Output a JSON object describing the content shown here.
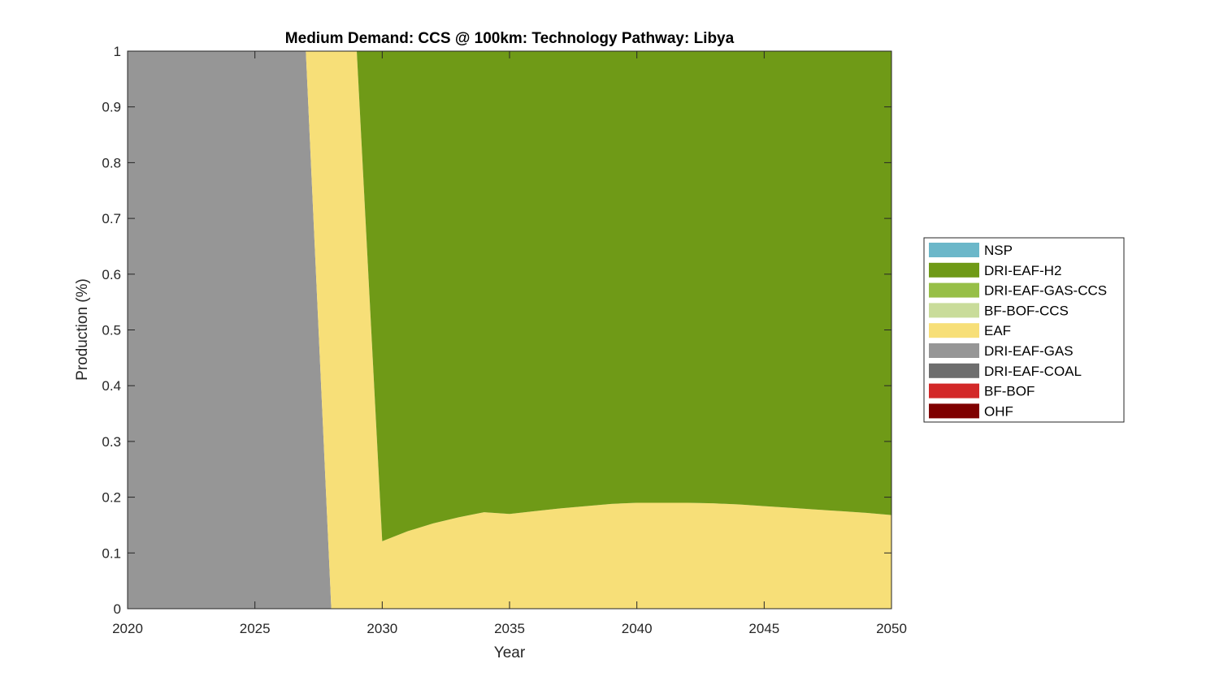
{
  "chart_data": {
    "type": "area",
    "title": "Medium Demand: CCS @ 100km: Technology Pathway: Libya",
    "xlabel": "Year",
    "ylabel": "Production (%)",
    "xlim": [
      2020,
      2050
    ],
    "ylim": [
      0,
      1
    ],
    "xticks": [
      2020,
      2025,
      2030,
      2035,
      2040,
      2045,
      2050
    ],
    "yticks": [
      0,
      0.1,
      0.2,
      0.3,
      0.4,
      0.5,
      0.6,
      0.7,
      0.8,
      0.9,
      1
    ],
    "grid": false,
    "legend_position": "right",
    "stack_order": [
      "OHF",
      "BF-BOF",
      "DRI-EAF-COAL",
      "DRI-EAF-GAS",
      "EAF",
      "BF-BOF-CCS",
      "DRI-EAF-GAS-CCS",
      "DRI-EAF-H2",
      "NSP"
    ],
    "legend_order": [
      "NSP",
      "DRI-EAF-H2",
      "DRI-EAF-GAS-CCS",
      "BF-BOF-CCS",
      "EAF",
      "DRI-EAF-GAS",
      "DRI-EAF-COAL",
      "BF-BOF",
      "OHF"
    ],
    "x": [
      2020,
      2021,
      2022,
      2023,
      2024,
      2025,
      2026,
      2027,
      2028,
      2029,
      2030,
      2031,
      2032,
      2033,
      2034,
      2035,
      2036,
      2037,
      2038,
      2039,
      2040,
      2041,
      2042,
      2043,
      2044,
      2045,
      2046,
      2047,
      2048,
      2049,
      2050
    ],
    "series": [
      {
        "name": "NSP",
        "color": "#6bb7c9",
        "values": [
          0,
          0,
          0,
          0,
          0,
          0,
          0,
          0,
          0,
          0,
          0,
          0,
          0,
          0,
          0,
          0,
          0,
          0,
          0,
          0,
          0,
          0,
          0,
          0,
          0,
          0,
          0,
          0,
          0,
          0,
          0
        ]
      },
      {
        "name": "DRI-EAF-H2",
        "color": "#6f9a17",
        "values": [
          0,
          0,
          0,
          0,
          0,
          0,
          0,
          0,
          0,
          0,
          0.879,
          0.861,
          0.847,
          0.836,
          0.827,
          0.83,
          0.825,
          0.82,
          0.816,
          0.812,
          0.81,
          0.81,
          0.81,
          0.811,
          0.813,
          0.816,
          0.819,
          0.822,
          0.825,
          0.828,
          0.832
        ]
      },
      {
        "name": "DRI-EAF-GAS-CCS",
        "color": "#97bf47",
        "values": [
          0,
          0,
          0,
          0,
          0,
          0,
          0,
          0,
          0,
          0,
          0,
          0,
          0,
          0,
          0,
          0,
          0,
          0,
          0,
          0,
          0,
          0,
          0,
          0,
          0,
          0,
          0,
          0,
          0,
          0,
          0
        ]
      },
      {
        "name": "BF-BOF-CCS",
        "color": "#c9dc9a",
        "values": [
          0,
          0,
          0,
          0,
          0,
          0,
          0,
          0,
          0,
          0,
          0,
          0,
          0,
          0,
          0,
          0,
          0,
          0,
          0,
          0,
          0,
          0,
          0,
          0,
          0,
          0,
          0,
          0,
          0,
          0,
          0
        ]
      },
      {
        "name": "EAF",
        "color": "#f7df78",
        "values": [
          0,
          0,
          0,
          0,
          0,
          0,
          0,
          0,
          1,
          1,
          0.121,
          0.139,
          0.153,
          0.164,
          0.173,
          0.17,
          0.175,
          0.18,
          0.184,
          0.188,
          0.19,
          0.19,
          0.19,
          0.189,
          0.187,
          0.184,
          0.181,
          0.178,
          0.175,
          0.172,
          0.168
        ]
      },
      {
        "name": "DRI-EAF-GAS",
        "color": "#969696",
        "values": [
          1,
          1,
          1,
          1,
          1,
          1,
          1,
          1,
          0,
          0,
          0,
          0,
          0,
          0,
          0,
          0,
          0,
          0,
          0,
          0,
          0,
          0,
          0,
          0,
          0,
          0,
          0,
          0,
          0,
          0,
          0
        ]
      },
      {
        "name": "DRI-EAF-COAL",
        "color": "#6e6e6e",
        "values": [
          0,
          0,
          0,
          0,
          0,
          0,
          0,
          0,
          0,
          0,
          0,
          0,
          0,
          0,
          0,
          0,
          0,
          0,
          0,
          0,
          0,
          0,
          0,
          0,
          0,
          0,
          0,
          0,
          0,
          0,
          0
        ]
      },
      {
        "name": "BF-BOF",
        "color": "#d32828",
        "values": [
          0,
          0,
          0,
          0,
          0,
          0,
          0,
          0,
          0,
          0,
          0,
          0,
          0,
          0,
          0,
          0,
          0,
          0,
          0,
          0,
          0,
          0,
          0,
          0,
          0,
          0,
          0,
          0,
          0,
          0,
          0
        ]
      },
      {
        "name": "OHF",
        "color": "#7f0000",
        "values": [
          0,
          0,
          0,
          0,
          0,
          0,
          0,
          0,
          0,
          0,
          0,
          0,
          0,
          0,
          0,
          0,
          0,
          0,
          0,
          0,
          0,
          0,
          0,
          0,
          0,
          0,
          0,
          0,
          0,
          0,
          0
        ]
      }
    ]
  }
}
